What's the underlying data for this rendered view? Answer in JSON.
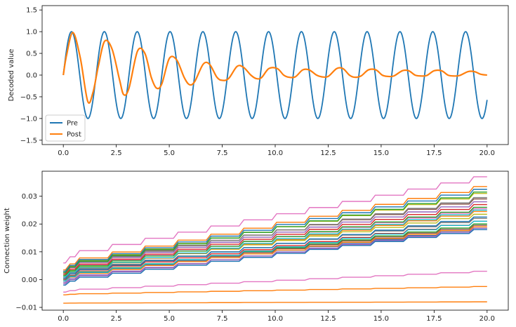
{
  "chart_data": [
    {
      "type": "line",
      "title": "",
      "xlabel": "",
      "ylabel": "Decoded value",
      "xlim": [
        -1.0,
        21.0
      ],
      "ylim": [
        -1.6,
        1.6
      ],
      "xticks": [
        0.0,
        2.5,
        5.0,
        7.5,
        10.0,
        12.5,
        15.0,
        17.5,
        20.0
      ],
      "xtick_labels": [
        "0.0",
        "2.5",
        "5.0",
        "7.5",
        "10.0",
        "12.5",
        "15.0",
        "17.5",
        "20.0"
      ],
      "yticks": [
        -1.5,
        -1.0,
        -0.5,
        0.0,
        0.5,
        1.0,
        1.5
      ],
      "ytick_labels": [
        "−1.5",
        "−1.0",
        "−0.5",
        "0.0",
        "0.5",
        "1.0",
        "1.5"
      ],
      "grid": false,
      "legend": {
        "position": "lower-left",
        "entries": [
          "Pre",
          "Post"
        ]
      },
      "series": [
        {
          "name": "Pre",
          "color": "#1f77b4",
          "description_points": "sine wave, amplitude 1.0, period ~1.55 s",
          "x": [
            0.0,
            0.39,
            0.78,
            1.16,
            1.55,
            1.94,
            2.33,
            2.71,
            3.1,
            3.49,
            3.88,
            4.26,
            4.65,
            5.04,
            5.43,
            5.81,
            6.2,
            6.59,
            6.98,
            7.36,
            7.75,
            8.14,
            8.53,
            8.91,
            9.3,
            9.69,
            10.08,
            10.46,
            10.85,
            11.24,
            11.63,
            12.01,
            12.4,
            12.79,
            13.18,
            13.56,
            13.95,
            14.34,
            14.73,
            15.11,
            15.5,
            15.89,
            16.28,
            16.66,
            17.05,
            17.44,
            17.83,
            18.21,
            18.6,
            18.99,
            19.38,
            19.76,
            20.0
          ],
          "y": [
            0.0,
            1.0,
            0.0,
            -1.0,
            0.0,
            1.0,
            0.0,
            -1.0,
            0.0,
            1.0,
            0.0,
            -1.0,
            0.0,
            1.0,
            0.0,
            -1.0,
            0.0,
            1.0,
            0.0,
            -1.0,
            0.0,
            1.0,
            0.0,
            -1.0,
            0.0,
            1.0,
            0.0,
            -1.0,
            0.0,
            1.0,
            0.0,
            -1.0,
            0.0,
            1.0,
            0.0,
            -1.0,
            0.0,
            1.0,
            0.0,
            -1.0,
            0.0,
            1.0,
            0.0,
            -1.0,
            0.0,
            1.0,
            0.0,
            -1.0,
            0.0,
            1.0,
            0.0,
            -1.0,
            -0.96
          ]
        },
        {
          "name": "Post",
          "color": "#ff7f0e",
          "x": [
            0.0,
            0.15,
            0.45,
            0.8,
            1.15,
            1.4,
            1.65,
            1.95,
            2.3,
            2.65,
            2.85,
            3.1,
            3.5,
            3.85,
            4.15,
            4.4,
            4.65,
            5.0,
            5.35,
            5.7,
            5.95,
            6.2,
            6.6,
            6.9,
            7.25,
            7.5,
            7.8,
            8.2,
            8.5,
            8.85,
            9.1,
            9.35,
            9.7,
            10.1,
            10.4,
            10.65,
            10.95,
            11.3,
            11.6,
            11.95,
            12.2,
            12.5,
            12.9,
            13.2,
            13.5,
            13.75,
            14.05,
            14.4,
            14.75,
            15.05,
            15.3,
            15.6,
            16.0,
            16.3,
            16.6,
            16.85,
            17.15,
            17.5,
            17.85,
            18.15,
            18.4,
            18.7,
            19.1,
            19.4,
            19.7,
            20.0
          ],
          "y": [
            0.0,
            0.45,
            0.98,
            0.4,
            -0.6,
            -0.4,
            0.2,
            0.78,
            0.6,
            -0.1,
            -0.45,
            -0.3,
            0.55,
            0.5,
            -0.05,
            -0.3,
            -0.2,
            0.38,
            0.35,
            -0.05,
            -0.22,
            -0.15,
            0.25,
            0.25,
            -0.05,
            -0.12,
            -0.08,
            0.2,
            0.18,
            0.0,
            -0.08,
            -0.06,
            0.15,
            0.15,
            0.0,
            -0.05,
            -0.04,
            0.12,
            0.12,
            0.0,
            -0.04,
            -0.03,
            0.15,
            0.15,
            0.0,
            -0.05,
            -0.02,
            0.12,
            0.12,
            0.0,
            -0.03,
            -0.02,
            0.1,
            0.1,
            0.0,
            -0.02,
            -0.01,
            0.1,
            0.1,
            0.0,
            -0.02,
            -0.01,
            0.08,
            0.08,
            0.02,
            0.0
          ]
        }
      ]
    },
    {
      "type": "line",
      "title": "",
      "xlabel": "",
      "ylabel": "Connection weight",
      "xlim": [
        -1.0,
        21.0
      ],
      "ylim": [
        -0.011,
        0.039
      ],
      "xticks": [
        0.0,
        2.5,
        5.0,
        7.5,
        10.0,
        12.5,
        15.0,
        17.5,
        20.0
      ],
      "xtick_labels": [
        "0.0",
        "2.5",
        "5.0",
        "7.5",
        "10.0",
        "12.5",
        "15.0",
        "17.5",
        "20.0"
      ],
      "yticks": [
        -0.01,
        0.0,
        0.01,
        0.02,
        0.03
      ],
      "ytick_labels": [
        "−0.01",
        "0.00",
        "0.01",
        "0.02",
        "0.03"
      ],
      "grid": false,
      "legend": null,
      "step_times": [
        0.1,
        0.55,
        2.1,
        3.65,
        5.2,
        6.75,
        8.3,
        9.85,
        11.4,
        12.95,
        14.5,
        16.05,
        17.6,
        19.15
      ],
      "series_colors": [
        "#1f77b4",
        "#ff7f0e",
        "#2ca02c",
        "#d62728",
        "#9467bd",
        "#8c564b",
        "#e377c2",
        "#7f7f7f",
        "#bcbd22",
        "#17becf"
      ],
      "series": [
        {
          "start": 0.0,
          "end": 0.0185,
          "color": "#1f77b4"
        },
        {
          "start": -0.0005,
          "end": 0.019,
          "color": "#ff7f0e"
        },
        {
          "start": 0.0,
          "end": 0.02,
          "color": "#2ca02c"
        },
        {
          "start": 0.0005,
          "end": 0.021,
          "color": "#d62728"
        },
        {
          "start": -0.001,
          "end": 0.018,
          "color": "#9467bd"
        },
        {
          "start": 0.0,
          "end": 0.0195,
          "color": "#8c564b"
        },
        {
          "start": 0.002,
          "end": 0.0255,
          "color": "#e377c2"
        },
        {
          "start": 0.001,
          "end": 0.022,
          "color": "#7f7f7f"
        },
        {
          "start": 0.0015,
          "end": 0.0235,
          "color": "#bcbd22"
        },
        {
          "start": -0.0005,
          "end": 0.021,
          "color": "#17becf"
        },
        {
          "start": 0.0005,
          "end": 0.0225,
          "color": "#1f77b4"
        },
        {
          "start": 0.001,
          "end": 0.0245,
          "color": "#ff7f0e"
        },
        {
          "start": 0.0015,
          "end": 0.026,
          "color": "#2ca02c"
        },
        {
          "start": 0.002,
          "end": 0.027,
          "color": "#d62728"
        },
        {
          "start": 0.0025,
          "end": 0.028,
          "color": "#9467bd"
        },
        {
          "start": 0.003,
          "end": 0.029,
          "color": "#8c564b"
        },
        {
          "start": 0.006,
          "end": 0.037,
          "color": "#e377c2"
        },
        {
          "start": 0.0025,
          "end": 0.0295,
          "color": "#7f7f7f"
        },
        {
          "start": 0.003,
          "end": 0.031,
          "color": "#bcbd22"
        },
        {
          "start": 0.0035,
          "end": 0.0335,
          "color": "#ff7f0e"
        },
        {
          "start": 0.0025,
          "end": 0.0315,
          "color": "#2ca02c"
        },
        {
          "start": 0.003,
          "end": 0.0325,
          "color": "#1f77b4"
        },
        {
          "start": 0.001,
          "end": 0.025,
          "color": "#17becf"
        },
        {
          "start": -0.0015,
          "end": 0.0185,
          "color": "#9467bd"
        },
        {
          "start": -0.002,
          "end": 0.018,
          "color": "#1f77b4"
        },
        {
          "start": -0.0045,
          "end": 0.003,
          "color": "#e377c2"
        },
        {
          "start": -0.0055,
          "end": -0.0025,
          "color": "#ff7f0e"
        },
        {
          "start": -0.0085,
          "end": -0.008,
          "color": "#ff7f0e"
        }
      ]
    }
  ]
}
